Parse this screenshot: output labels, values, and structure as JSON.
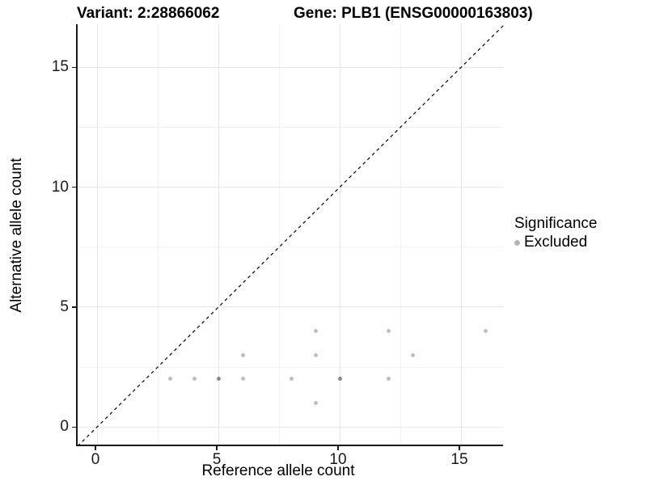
{
  "header": {
    "variant_title": "Variant: 2:28866062",
    "gene_title": "Gene: PLB1 (ENSG00000163803)"
  },
  "chart_data": {
    "type": "scatter",
    "xlabel": "Reference allele count",
    "ylabel": "Alternative allele count",
    "xlim": [
      -0.8,
      16.8
    ],
    "ylim": [
      -0.8,
      16.8
    ],
    "xticks": [
      0,
      5,
      10,
      15
    ],
    "yticks": [
      0,
      5,
      10,
      15
    ],
    "xticks_minor": [
      2.5,
      7.5,
      12.5
    ],
    "yticks_minor": [
      2.5,
      7.5,
      12.5
    ],
    "grid": "major and minor gridlines, light gray on white, no panel border, black left/bottom axis lines",
    "identity_line": {
      "style": "dashed",
      "color": "#000000",
      "from": [
        -0.8,
        -0.8
      ],
      "to": [
        16.8,
        16.8
      ]
    },
    "series": [
      {
        "name": "Excluded",
        "marker_rgba": "rgba(0,0,0,0.25)",
        "marker_size_px": 5,
        "points": [
          [
            3,
            2
          ],
          [
            4,
            2
          ],
          [
            5,
            2
          ],
          [
            5,
            2
          ],
          [
            6,
            2
          ],
          [
            6,
            3
          ],
          [
            8,
            2
          ],
          [
            9,
            1
          ],
          [
            9,
            3
          ],
          [
            9,
            4
          ],
          [
            10,
            2
          ],
          [
            10,
            2
          ],
          [
            12,
            2
          ],
          [
            12,
            4
          ],
          [
            13,
            3
          ],
          [
            16,
            4
          ]
        ]
      }
    ]
  },
  "legend": {
    "title": "Significance",
    "position": "right",
    "items": [
      {
        "label": "Excluded",
        "marker_color": "#b5b5b5"
      }
    ]
  },
  "colors": {
    "background": "#ffffff",
    "grid_major": "#e6e6e6",
    "grid_minor": "#f2f2f2",
    "axis_line": "#1a1a1a",
    "text": "#000000"
  }
}
